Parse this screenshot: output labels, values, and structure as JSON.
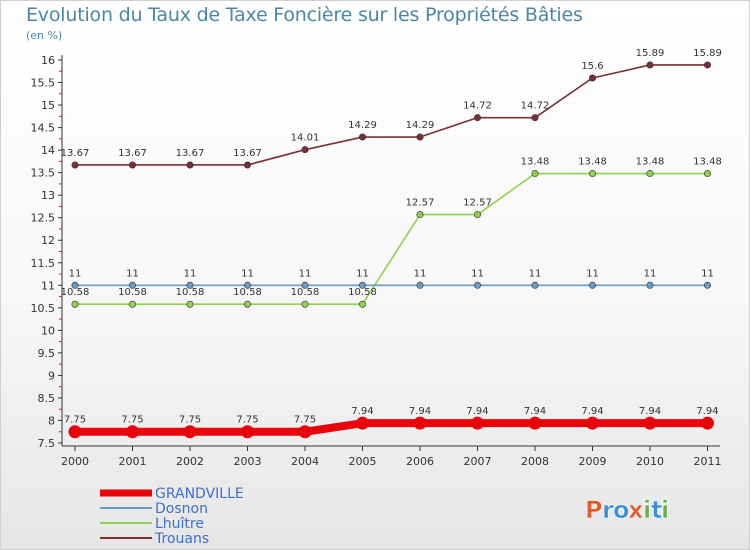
{
  "title": "Evolution du Taux de Taxe Foncière sur les Propriétés Bâties",
  "unit": "(en %)",
  "brand": {
    "text": "Proxiti",
    "letters": [
      "P",
      "r",
      "o",
      "x",
      "i",
      "t",
      "i"
    ],
    "colors": [
      "#e25b2a",
      "#3a8fd6",
      "#3a8fd6",
      "#e25b2a",
      "#6ab04c",
      "#3a8fd6",
      "#6ab04c"
    ]
  },
  "chart_data": {
    "type": "line",
    "title": "Evolution du Taux de Taxe Foncière sur les Propriétés Bâties",
    "ylabel": "(en %)",
    "x": [
      "2000",
      "2001",
      "2002",
      "2003",
      "2004",
      "2005",
      "2006",
      "2007",
      "2008",
      "2009",
      "2010",
      "2011"
    ],
    "ylim": [
      7.5,
      16
    ],
    "yticks": [
      "7.5",
      "8",
      "8.5",
      "9",
      "9.5",
      "10",
      "10.5",
      "11",
      "11.5",
      "12",
      "12.5",
      "13",
      "13.5",
      "14",
      "14.5",
      "15",
      "15.5",
      "16"
    ],
    "grid": false,
    "legend": "bottom-left",
    "series": [
      {
        "name": "GRANDVILLE",
        "color": "#e8040a",
        "values": [
          7.75,
          7.75,
          7.75,
          7.75,
          7.75,
          7.94,
          7.94,
          7.94,
          7.94,
          7.94,
          7.94,
          7.94
        ],
        "labels": [
          "7.75",
          "7.75",
          "7.75",
          "7.75",
          "7.75",
          "7.94",
          "7.94",
          "7.94",
          "7.94",
          "7.94",
          "7.94",
          "7.94"
        ]
      },
      {
        "name": "Dosnon",
        "color": "#6a9bc3",
        "values": [
          11,
          11,
          11,
          11,
          11,
          11,
          11,
          11,
          11,
          11,
          11,
          11
        ],
        "labels": [
          "11",
          "11",
          "11",
          "11",
          "11",
          "11",
          "11",
          "11",
          "11",
          "11",
          "11",
          "11"
        ]
      },
      {
        "name": "Lhuître",
        "color": "#8fd14f",
        "values": [
          10.58,
          10.58,
          10.58,
          10.58,
          10.58,
          10.58,
          12.57,
          12.57,
          13.48,
          13.48,
          13.48,
          13.48
        ],
        "labels": [
          "10.58",
          "10.58",
          "10.58",
          "10.58",
          "10.58",
          "10.58",
          "12.57",
          "12.57",
          "13.48",
          "13.48",
          "13.48",
          "13.48"
        ]
      },
      {
        "name": "Trouans",
        "color": "#7a2e35",
        "values": [
          13.67,
          13.67,
          13.67,
          13.67,
          14.01,
          14.29,
          14.29,
          14.72,
          14.72,
          15.6,
          15.89,
          15.89
        ],
        "labels": [
          "13.67",
          "13.67",
          "13.67",
          "13.67",
          "14.01",
          "14.29",
          "14.29",
          "14.72",
          "14.72",
          "15.6",
          "15.89",
          "15.89"
        ]
      }
    ]
  }
}
